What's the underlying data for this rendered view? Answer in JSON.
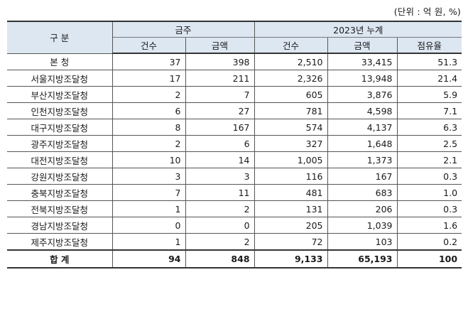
{
  "unit_note": "(단위 : 억 원, %)",
  "header": {
    "category": "구 분",
    "group_week": "금주",
    "group_ytd": "2023년 누계",
    "count": "건수",
    "amount": "금액",
    "count2": "건수",
    "amount2": "금액",
    "share": "점유율"
  },
  "rows": [
    {
      "name": "본    청",
      "wk_count": "37",
      "wk_amount": "398",
      "ytd_count": "2,510",
      "ytd_amount": "33,415",
      "share": "51.3"
    },
    {
      "name": "서울지방조달청",
      "wk_count": "17",
      "wk_amount": "211",
      "ytd_count": "2,326",
      "ytd_amount": "13,948",
      "share": "21.4"
    },
    {
      "name": "부산지방조달청",
      "wk_count": "2",
      "wk_amount": "7",
      "ytd_count": "605",
      "ytd_amount": "3,876",
      "share": "5.9"
    },
    {
      "name": "인천지방조달청",
      "wk_count": "6",
      "wk_amount": "27",
      "ytd_count": "781",
      "ytd_amount": "4,598",
      "share": "7.1"
    },
    {
      "name": "대구지방조달청",
      "wk_count": "8",
      "wk_amount": "167",
      "ytd_count": "574",
      "ytd_amount": "4,137",
      "share": "6.3"
    },
    {
      "name": "광주지방조달청",
      "wk_count": "2",
      "wk_amount": "6",
      "ytd_count": "327",
      "ytd_amount": "1,648",
      "share": "2.5"
    },
    {
      "name": "대전지방조달청",
      "wk_count": "10",
      "wk_amount": "14",
      "ytd_count": "1,005",
      "ytd_amount": "1,373",
      "share": "2.1"
    },
    {
      "name": "강원지방조달청",
      "wk_count": "3",
      "wk_amount": "3",
      "ytd_count": "116",
      "ytd_amount": "167",
      "share": "0.3"
    },
    {
      "name": "충북지방조달청",
      "wk_count": "7",
      "wk_amount": "11",
      "ytd_count": "481",
      "ytd_amount": "683",
      "share": "1.0"
    },
    {
      "name": "전북지방조달청",
      "wk_count": "1",
      "wk_amount": "2",
      "ytd_count": "131",
      "ytd_amount": "206",
      "share": "0.3"
    },
    {
      "name": "경남지방조달청",
      "wk_count": "0",
      "wk_amount": "0",
      "ytd_count": "205",
      "ytd_amount": "1,039",
      "share": "1.6"
    },
    {
      "name": "제주지방조달청",
      "wk_count": "1",
      "wk_amount": "2",
      "ytd_count": "72",
      "ytd_amount": "103",
      "share": "0.2"
    }
  ],
  "total": {
    "name": "합  계",
    "wk_count": "94",
    "wk_amount": "848",
    "ytd_count": "9,133",
    "ytd_amount": "65,193",
    "share": "100"
  }
}
